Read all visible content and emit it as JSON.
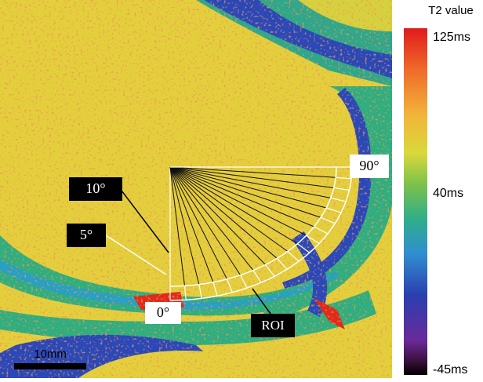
{
  "image": {
    "annotations": {
      "angle_90": "90°",
      "angle_10": "10°",
      "angle_5": "5°",
      "angle_0": "0°",
      "roi": "ROI"
    },
    "scale_bar": "10mm"
  },
  "colorbar": {
    "title": "T2 value",
    "max": "125ms",
    "mid": "40ms",
    "min": "-45ms"
  }
}
